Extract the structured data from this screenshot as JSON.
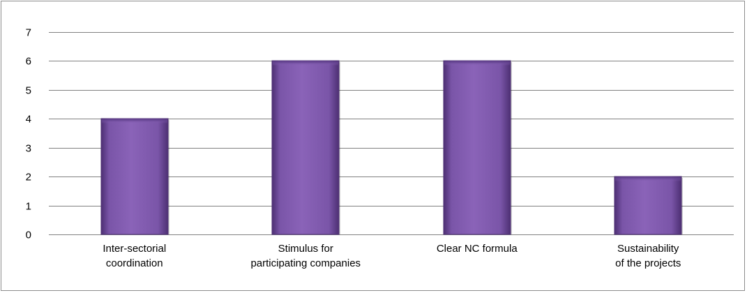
{
  "chart_data": {
    "type": "bar",
    "title": "",
    "xlabel": "",
    "ylabel": "",
    "categories": [
      [
        "Inter-sectorial",
        "coordination"
      ],
      [
        "Stimulus for",
        "participating companies"
      ],
      [
        "Clear NC formula"
      ],
      [
        "Sustainability",
        "of the projects"
      ]
    ],
    "values": [
      4,
      6,
      6,
      2
    ],
    "ylim": [
      0,
      7
    ],
    "yticks": [
      0,
      1,
      2,
      3,
      4,
      5,
      6,
      7
    ],
    "grid": true,
    "legend": "none",
    "colors": {
      "bar_mid": "#8a63b8",
      "bar_edge": "#4d2f73",
      "grid": "#808080",
      "border": "#8c8c8c"
    }
  }
}
